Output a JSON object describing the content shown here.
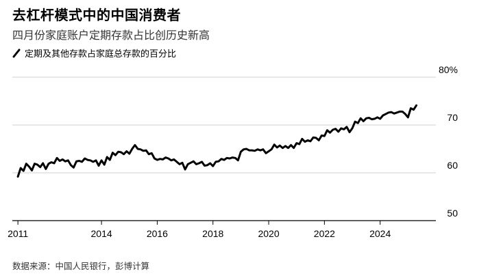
{
  "header": {
    "title": "去杠杆模式中的中国消费者",
    "subtitle": "四月份家庭账户定期存款占比创历史新高"
  },
  "legend": {
    "series_label": "定期及其他存款占家庭总存款的百分比",
    "series_color": "#000000"
  },
  "source": "数据来源：中国人民银行，彭博计算",
  "chart_data": {
    "type": "line",
    "title": "去杠杆模式中的中国消费者",
    "subtitle": "四月份家庭账户定期存款占比创历史新高",
    "xlabel": "",
    "ylabel": "",
    "xlim": [
      2010.8,
      2026.0
    ],
    "ylim": [
      50,
      80
    ],
    "x_ticks": [
      2011,
      2014,
      2016,
      2018,
      2020,
      2022,
      2024
    ],
    "x_tick_labels": [
      "2011",
      "2014",
      "2016",
      "2018",
      "2020",
      "2022",
      "2024"
    ],
    "y_ticks": [
      50,
      60,
      70,
      80
    ],
    "y_tick_labels": [
      "50",
      "60",
      "70",
      "80%"
    ],
    "grid": "horizontal",
    "series": [
      {
        "name": "定期及其他存款占家庭总存款的百分比",
        "color": "#000000",
        "x": [
          2011.0,
          2011.1,
          2011.2,
          2011.3,
          2011.4,
          2011.5,
          2011.6,
          2011.7,
          2011.8,
          2011.9,
          2012.0,
          2012.1,
          2012.2,
          2012.3,
          2012.4,
          2012.5,
          2012.6,
          2012.7,
          2012.8,
          2012.9,
          2013.0,
          2013.1,
          2013.2,
          2013.3,
          2013.4,
          2013.5,
          2013.6,
          2013.7,
          2013.8,
          2013.9,
          2014.0,
          2014.1,
          2014.2,
          2014.3,
          2014.4,
          2014.5,
          2014.6,
          2014.7,
          2014.8,
          2014.9,
          2015.0,
          2015.1,
          2015.2,
          2015.3,
          2015.4,
          2015.5,
          2015.6,
          2015.7,
          2015.8,
          2015.9,
          2016.0,
          2016.1,
          2016.2,
          2016.3,
          2016.4,
          2016.5,
          2016.6,
          2016.7,
          2016.8,
          2016.9,
          2017.0,
          2017.1,
          2017.2,
          2017.3,
          2017.4,
          2017.5,
          2017.6,
          2017.7,
          2017.8,
          2017.9,
          2018.0,
          2018.1,
          2018.2,
          2018.3,
          2018.4,
          2018.5,
          2018.6,
          2018.7,
          2018.8,
          2018.9,
          2019.0,
          2019.1,
          2019.2,
          2019.3,
          2019.4,
          2019.5,
          2019.6,
          2019.7,
          2019.8,
          2019.9,
          2020.0,
          2020.1,
          2020.2,
          2020.3,
          2020.4,
          2020.5,
          2020.6,
          2020.7,
          2020.8,
          2020.9,
          2021.0,
          2021.1,
          2021.2,
          2021.3,
          2021.4,
          2021.5,
          2021.6,
          2021.7,
          2021.8,
          2021.9,
          2022.0,
          2022.1,
          2022.2,
          2022.3,
          2022.4,
          2022.5,
          2022.6,
          2022.7,
          2022.8,
          2022.9,
          2023.0,
          2023.1,
          2023.2,
          2023.3,
          2023.4,
          2023.5,
          2023.6,
          2023.7,
          2023.8,
          2023.9,
          2024.0,
          2024.1,
          2024.2,
          2024.3,
          2024.4,
          2024.5,
          2024.6,
          2024.7,
          2024.8,
          2024.9,
          2025.0,
          2025.1,
          2025.2,
          2025.3
        ],
        "values": [
          59.2,
          61.0,
          60.4,
          61.9,
          61.3,
          60.5,
          61.9,
          61.7,
          61.2,
          62.0,
          60.8,
          61.9,
          62.2,
          62.0,
          63.1,
          62.5,
          62.8,
          62.4,
          62.6,
          61.6,
          61.1,
          62.4,
          62.5,
          62.3,
          63.0,
          62.7,
          62.6,
          62.3,
          62.6,
          61.5,
          62.6,
          61.7,
          63.3,
          62.7,
          64.2,
          63.7,
          64.4,
          64.3,
          63.9,
          64.5,
          64.0,
          65.0,
          65.8,
          65.0,
          64.9,
          64.6,
          64.7,
          63.9,
          64.1,
          63.0,
          62.7,
          62.9,
          62.8,
          63.2,
          63.0,
          62.6,
          62.8,
          62.3,
          61.8,
          62.1,
          60.7,
          61.8,
          62.1,
          62.4,
          61.8,
          62.0,
          62.3,
          61.5,
          61.6,
          62.0,
          61.4,
          62.3,
          62.4,
          62.9,
          62.7,
          63.1,
          63.0,
          63.2,
          63.1,
          62.6,
          64.4,
          64.9,
          65.0,
          64.7,
          64.7,
          64.6,
          64.9,
          64.7,
          64.9,
          64.1,
          64.5,
          64.9,
          65.9,
          65.3,
          65.7,
          65.2,
          65.6,
          65.2,
          65.8,
          65.2,
          66.2,
          66.0,
          67.1,
          66.5,
          66.8,
          66.6,
          67.4,
          67.3,
          66.8,
          67.8,
          67.7,
          68.9,
          68.4,
          69.0,
          69.2,
          68.6,
          69.3,
          69.1,
          69.6,
          68.5,
          69.3,
          70.7,
          70.4,
          71.4,
          70.8,
          71.4,
          71.5,
          71.2,
          71.3,
          71.6,
          71.3,
          72.0,
          72.3,
          72.6,
          72.7,
          72.4,
          72.6,
          72.8,
          72.8,
          72.3,
          71.6,
          73.5,
          73.2,
          74.1
        ]
      }
    ]
  }
}
